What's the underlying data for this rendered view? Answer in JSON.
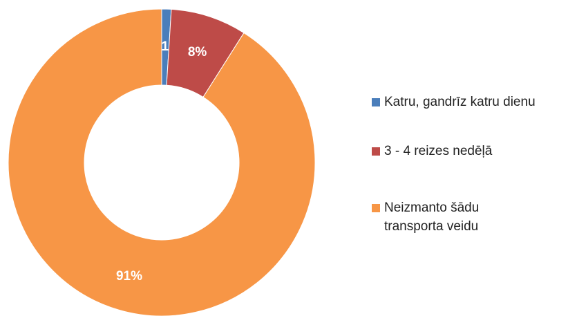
{
  "chart_data": {
    "type": "donut",
    "categories": [
      "Katru, gandrīz katru dienu",
      "3 - 4 reizes nedēļā",
      "Neizmanto šādu transporta veidu"
    ],
    "values": [
      1,
      8,
      91
    ],
    "value_labels": [
      "1%",
      "8%",
      "91%"
    ],
    "colors": [
      "#4a7ebb",
      "#be4b48",
      "#f79646"
    ],
    "legend": "right"
  }
}
